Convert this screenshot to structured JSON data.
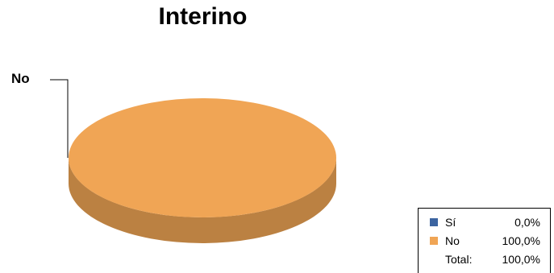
{
  "chart_data": {
    "type": "pie",
    "title": "Interino",
    "slices": [
      {
        "label": "Sí",
        "value": 0.0,
        "percent_text": "0,0%",
        "color": "#3c64a0"
      },
      {
        "label": "No",
        "value": 100.0,
        "percent_text": "100,0%",
        "color": "#f0a555"
      }
    ],
    "slice_labels": [
      "No"
    ],
    "legend": {
      "position": "bottom-right",
      "total_label": "Total:",
      "total_value": "100,0%"
    },
    "style": "3d"
  }
}
